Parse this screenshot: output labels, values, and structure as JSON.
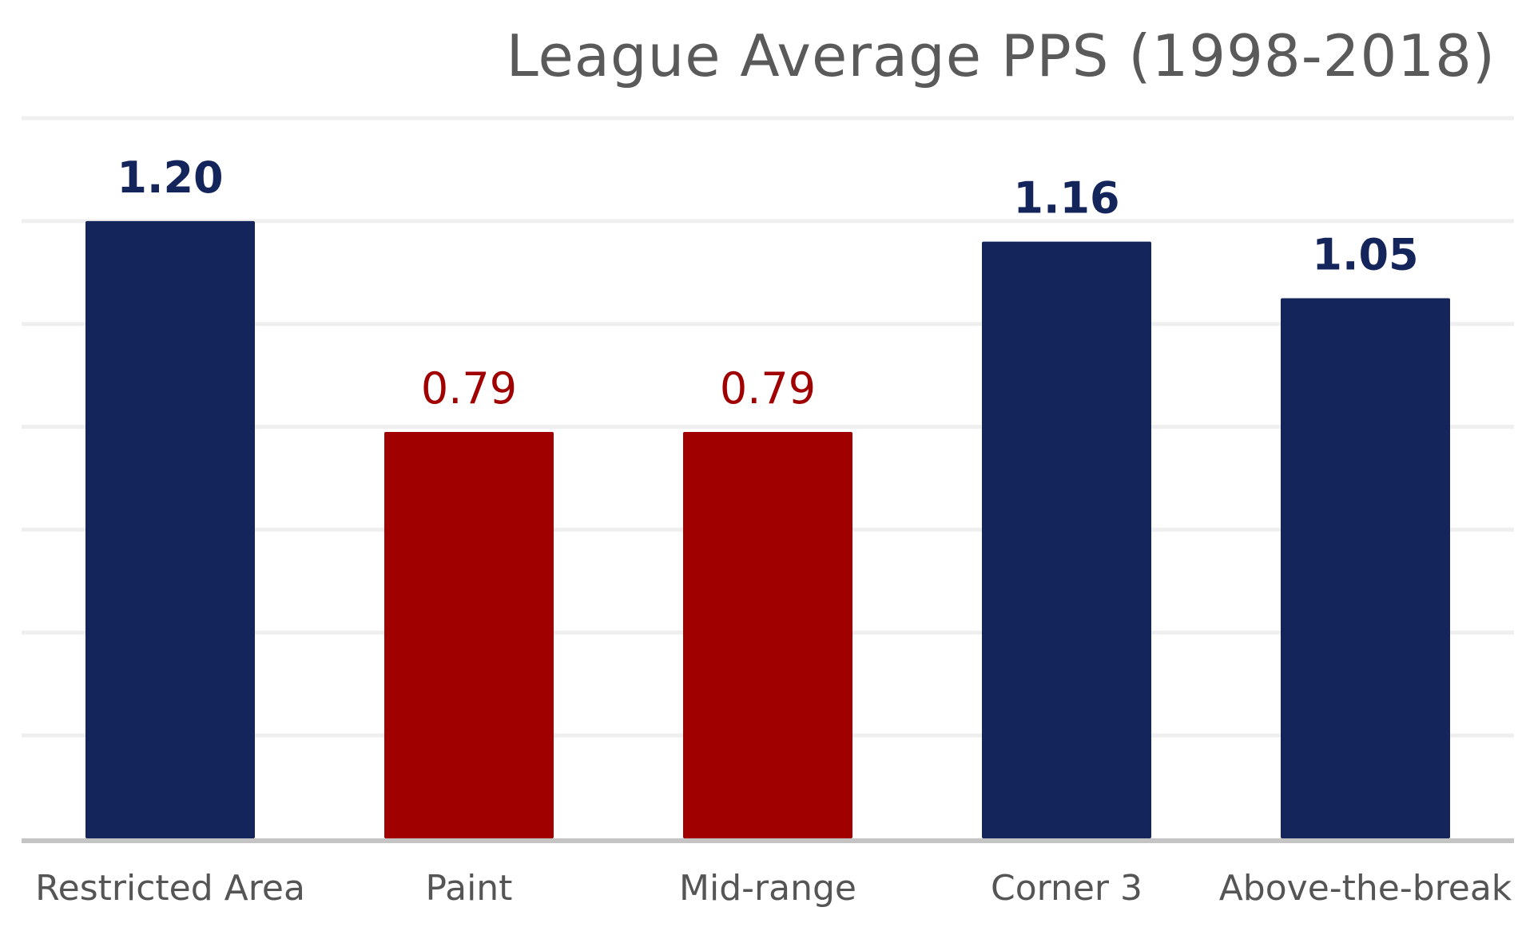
{
  "chart_data": {
    "type": "bar",
    "title": "League Average PPS (1998-2018)",
    "xlabel": "",
    "ylabel": "",
    "categories": [
      "Restricted Area",
      "Paint",
      "Mid-range",
      "Corner 3",
      "Above-the-break"
    ],
    "values": [
      1.2,
      0.79,
      0.79,
      1.16,
      1.05
    ],
    "value_labels": [
      "1.20",
      "0.79",
      "0.79",
      "1.16",
      "1.05"
    ],
    "bar_colors": [
      "#14255c",
      "#a00000",
      "#a00000",
      "#14255c",
      "#14255c"
    ],
    "ylim": [
      0,
      1.4
    ],
    "ytick_step": 0.2,
    "show_yticks": false,
    "grid": true,
    "legend": "none"
  }
}
